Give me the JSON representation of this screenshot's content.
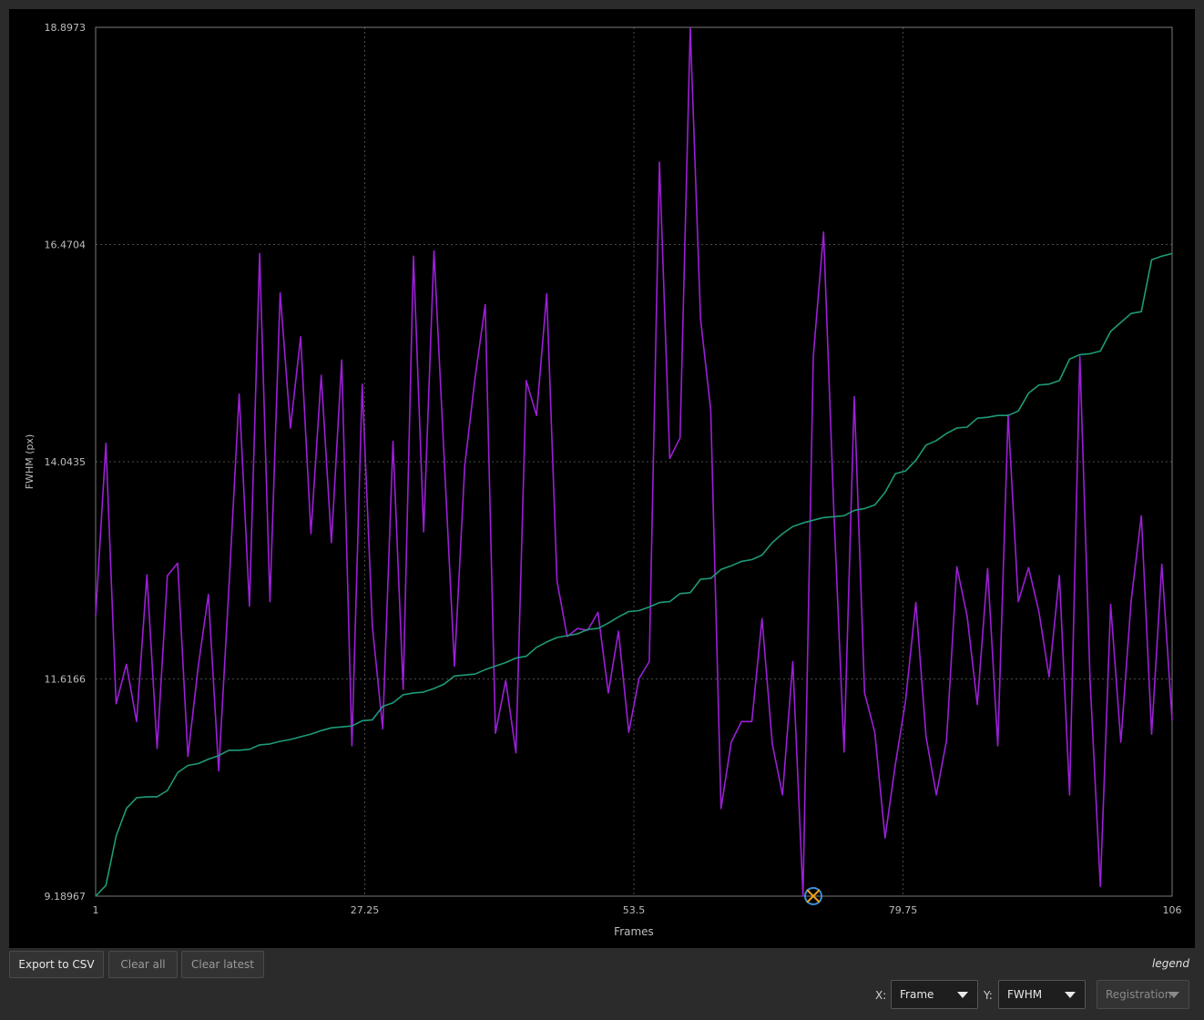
{
  "colors": {
    "background": "#2b2b2b",
    "plot_background": "#000000",
    "fwhm_series": "#9b1fd6",
    "sorted_series": "#1e9a78",
    "grid": "#4a4a4a",
    "marker_circle": "#3c8fd8",
    "marker_cross": "#f0a020"
  },
  "toolbar": {
    "export_label": "Export to CSV",
    "clear_all_label": "Clear all",
    "clear_latest_label": "Clear latest",
    "legend_label": "legend"
  },
  "axis_selectors": {
    "x_label": "X:",
    "x_value": "Frame",
    "y_label": "Y:",
    "y_value": "FWHM",
    "third_value": "Registration"
  },
  "chart_data": {
    "type": "line",
    "xlabel": "Frames",
    "ylabel": "FWHM (px)",
    "xlim": [
      1,
      106
    ],
    "ylim": [
      9.18967,
      18.8973
    ],
    "xticks": [
      "1",
      "27.25",
      "53.5",
      "79.75",
      "106"
    ],
    "yticks": [
      "9.18967",
      "11.6166",
      "14.0435",
      "16.4704",
      "18.8973"
    ],
    "grid": true,
    "x": [
      1,
      2,
      3,
      4,
      5,
      6,
      7,
      8,
      9,
      10,
      11,
      12,
      13,
      14,
      15,
      16,
      17,
      18,
      19,
      20,
      21,
      22,
      23,
      24,
      25,
      26,
      27,
      28,
      29,
      30,
      31,
      32,
      33,
      34,
      35,
      36,
      37,
      38,
      39,
      40,
      41,
      42,
      43,
      44,
      45,
      46,
      47,
      48,
      49,
      50,
      51,
      52,
      53,
      54,
      55,
      56,
      57,
      58,
      59,
      60,
      61,
      62,
      63,
      64,
      65,
      66,
      67,
      68,
      69,
      70,
      71,
      72,
      73,
      74,
      75,
      76,
      77,
      78,
      79,
      80,
      81,
      82,
      83,
      84,
      85,
      86,
      87,
      88,
      89,
      90,
      91,
      92,
      93,
      94,
      95,
      96,
      97,
      98,
      99,
      100,
      101,
      102,
      103,
      104,
      105,
      106
    ],
    "series": [
      {
        "values": [
          12.32,
          14.25,
          11.34,
          11.78,
          11.14,
          12.78,
          10.84,
          12.77,
          12.91,
          10.75,
          11.75,
          12.56,
          10.59,
          12.63,
          14.8,
          12.43,
          16.37,
          12.48,
          15.93,
          14.42,
          15.44,
          13.24,
          15.01,
          13.14,
          15.18,
          10.87,
          14.91,
          12.2,
          11.06,
          14.27,
          11.5,
          16.34,
          13.26,
          16.4,
          14.08,
          11.76,
          14.0,
          14.97,
          15.8,
          11.01,
          11.6,
          10.79,
          14.95,
          14.56,
          15.92,
          12.71,
          12.09,
          12.18,
          12.16,
          12.36,
          11.46,
          12.15,
          11.02,
          11.62,
          11.81,
          17.39,
          14.08,
          14.31,
          18.89,
          15.64,
          14.62,
          10.17,
          10.91,
          11.14,
          11.14,
          12.29,
          10.89,
          10.32,
          11.81,
          9.19,
          15.22,
          16.61,
          13.51,
          10.8,
          14.77,
          11.46,
          11.02,
          9.84,
          10.66,
          11.37,
          12.47,
          10.97,
          10.32,
          10.93,
          12.87,
          12.32,
          11.33,
          12.85,
          10.87,
          14.57,
          12.48,
          12.86,
          12.37,
          11.64,
          12.77,
          10.32,
          15.22,
          11.6,
          9.3,
          12.45,
          10.91,
          12.49,
          13.44,
          11.0,
          12.9,
          11.15
        ]
      },
      {
        "values": [
          9.19,
          9.31,
          9.86,
          10.17,
          10.29,
          10.3,
          10.3,
          10.37,
          10.57,
          10.65,
          10.67,
          10.72,
          10.76,
          10.82,
          10.82,
          10.83,
          10.88,
          10.89,
          10.92,
          10.94,
          10.97,
          11.0,
          11.04,
          11.07,
          11.08,
          11.09,
          11.15,
          11.16,
          11.31,
          11.35,
          11.44,
          11.46,
          11.47,
          11.51,
          11.56,
          11.65,
          11.66,
          11.67,
          11.72,
          11.76,
          11.8,
          11.85,
          11.87,
          11.97,
          12.03,
          12.08,
          12.1,
          12.12,
          12.17,
          12.18,
          12.24,
          12.31,
          12.37,
          12.38,
          12.42,
          12.47,
          12.48,
          12.57,
          12.58,
          12.73,
          12.74,
          12.84,
          12.88,
          12.93,
          12.95,
          13.0,
          13.14,
          13.24,
          13.32,
          13.36,
          13.39,
          13.42,
          13.43,
          13.44,
          13.5,
          13.52,
          13.56,
          13.7,
          13.91,
          13.94,
          14.06,
          14.23,
          14.28,
          14.36,
          14.42,
          14.43,
          14.53,
          14.54,
          14.56,
          14.56,
          14.61,
          14.81,
          14.9,
          14.91,
          14.95,
          15.19,
          15.24,
          15.25,
          15.28,
          15.5,
          15.6,
          15.7,
          15.72,
          16.3,
          16.34,
          16.37
        ]
      }
    ],
    "marker": {
      "x": 71,
      "y": 9.19
    }
  }
}
